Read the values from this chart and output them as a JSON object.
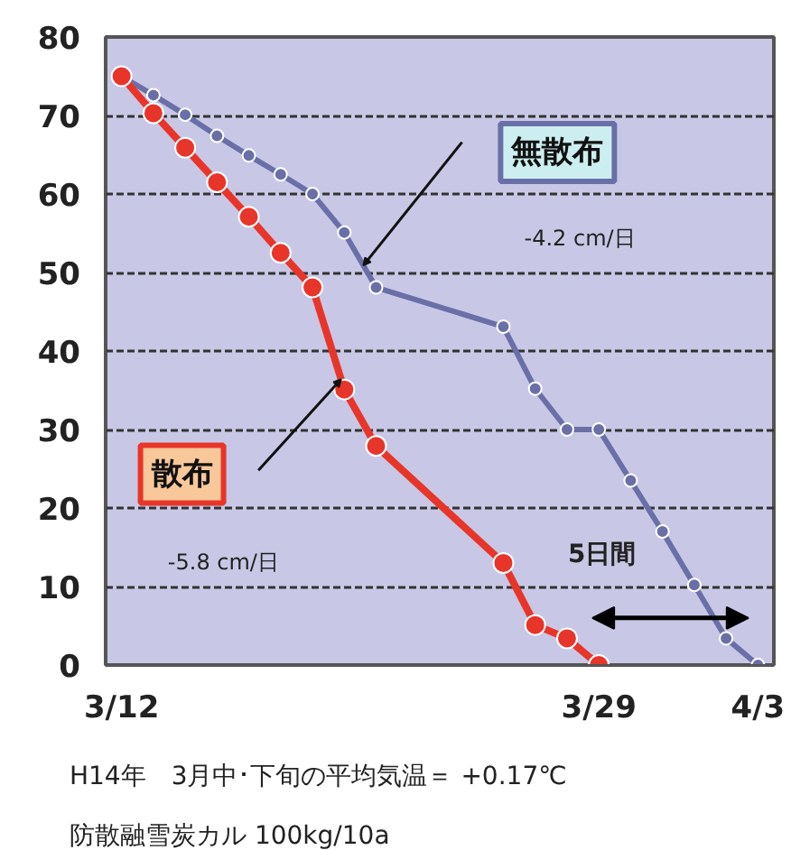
{
  "chart_data": {
    "type": "line",
    "ylim": [
      0,
      80
    ],
    "categories": [
      "3/12",
      null,
      null,
      null,
      null,
      null,
      null,
      null,
      null,
      null,
      null,
      null,
      null,
      null,
      null,
      "3/29",
      null,
      null,
      null,
      null,
      "4/3"
    ],
    "yticks": [
      0,
      10,
      20,
      30,
      40,
      50,
      60,
      70,
      80
    ],
    "grid": "y",
    "legend": false,
    "marker": "circle",
    "line_style": "solid",
    "series": [
      {
        "name": "無散布",
        "color": "#6a6fa8",
        "values": [
          75,
          72.6,
          70.1,
          67.4,
          64.9,
          62.5,
          60,
          55.1,
          48.1,
          null,
          null,
          null,
          43.1,
          35.2,
          30,
          30,
          23.5,
          17,
          10.2,
          3.4,
          0
        ]
      },
      {
        "name": "散布",
        "color": "#e8352a",
        "values": [
          75,
          70.3,
          65.9,
          61.5,
          57.1,
          52.5,
          48.1,
          35.1,
          27.9,
          null,
          null,
          null,
          13,
          5.1,
          3.4,
          0,
          null,
          null,
          null,
          null,
          null
        ]
      }
    ],
    "annotations": [
      "-4.2 cm/日",
      "-5.8 cm/日",
      "5日間",
      "H14年　3月中･下旬の平均気温＝ +0.17℃",
      "防散融雪炭カル 100kg/10a"
    ]
  }
}
